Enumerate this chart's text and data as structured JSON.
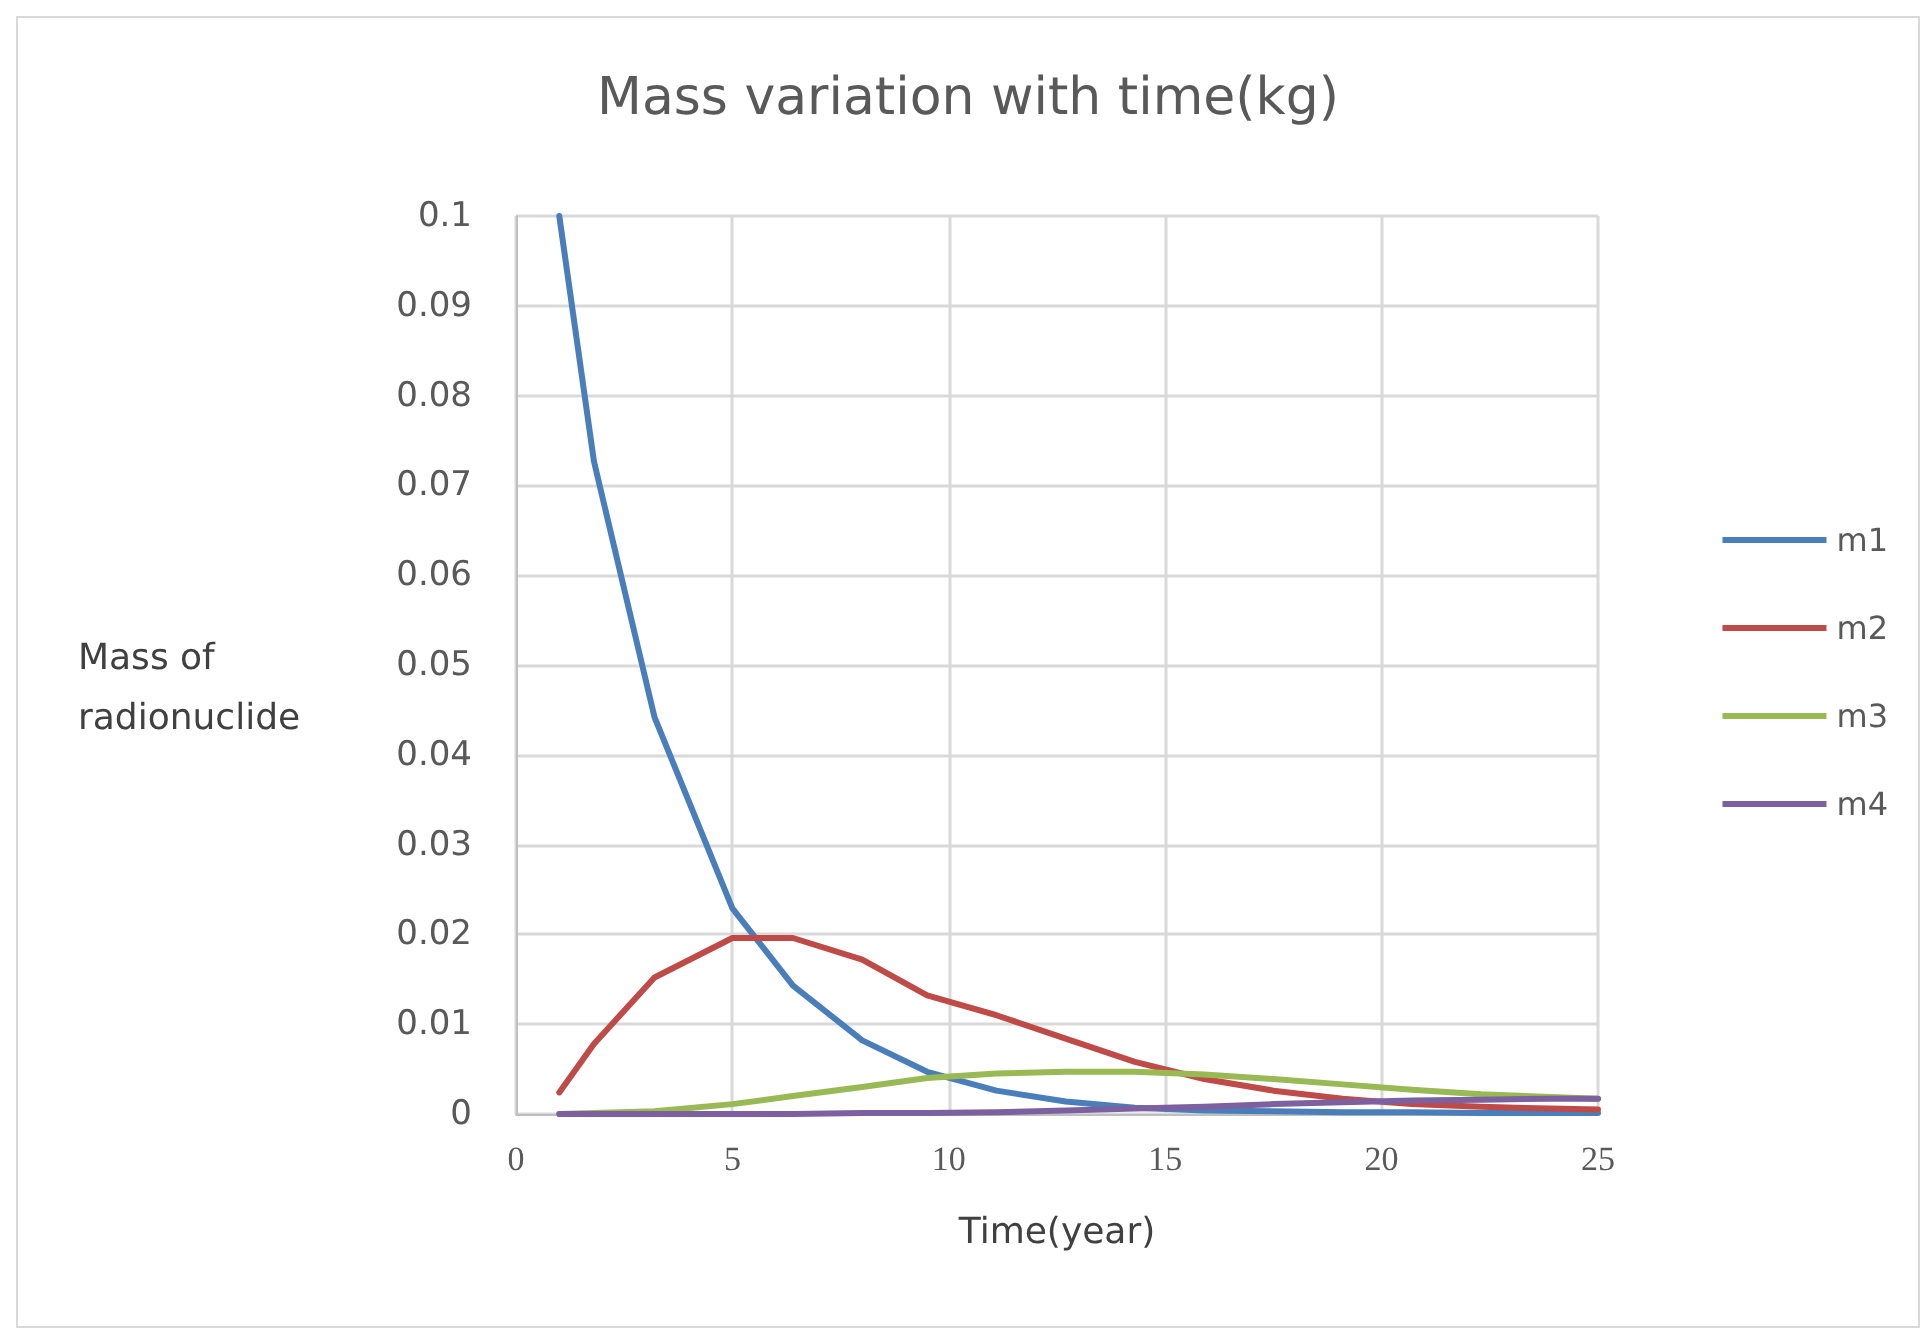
{
  "chart_data": {
    "type": "line",
    "title": "Mass variation with time(kg)",
    "xlabel": "Time(year)",
    "ylabel": "Mass of radionuclide",
    "x": [
      1,
      1.8,
      3.2,
      5,
      6.4,
      8,
      9.5,
      11.1,
      12.7,
      14.3,
      15.9,
      17.5,
      19.1,
      20.7,
      22.3,
      23.9,
      25
    ],
    "series": [
      {
        "name": "m1",
        "color": "#4a7ebb",
        "values": [
          0.1,
          0.0727,
          0.0442,
          0.0229,
          0.0143,
          0.0082,
          0.0047,
          0.0026,
          0.0014,
          0.0007,
          0.0004,
          0.0003,
          0.0002,
          0.0002,
          0.0001,
          0.0001,
          0.0001
        ]
      },
      {
        "name": "m2",
        "color": "#be4b48",
        "values": [
          0.0024,
          0.0078,
          0.0152,
          0.0196,
          0.0196,
          0.0172,
          0.0132,
          0.011,
          0.0084,
          0.0058,
          0.0039,
          0.0026,
          0.0017,
          0.0011,
          0.0008,
          0.0006,
          0.0005
        ]
      },
      {
        "name": "m3",
        "color": "#98b954",
        "values": [
          0,
          0.0001,
          0.0003,
          0.0011,
          0.002,
          0.003,
          0.004,
          0.0045,
          0.0047,
          0.0047,
          0.0044,
          0.0039,
          0.0033,
          0.0027,
          0.0022,
          0.0019,
          0.0017
        ]
      },
      {
        "name": "m4",
        "color": "#7d60a0",
        "values": [
          0,
          0,
          0,
          0,
          0,
          0.0001,
          0.0001,
          0.0002,
          0.0004,
          0.0006,
          0.0008,
          0.0011,
          0.0013,
          0.0015,
          0.0016,
          0.0017,
          0.0017
        ]
      }
    ],
    "xlim": [
      0,
      25
    ],
    "xticks": [
      0,
      5,
      10,
      15,
      20,
      25
    ],
    "ylim": [
      0,
      0.1
    ],
    "yticks": [
      0,
      0.01,
      0.02,
      0.03,
      0.04,
      0.05,
      0.06,
      0.07,
      0.08,
      0.09,
      0.1
    ],
    "grid": true,
    "legend": "right",
    "marker": "none",
    "line_style": "solid"
  }
}
